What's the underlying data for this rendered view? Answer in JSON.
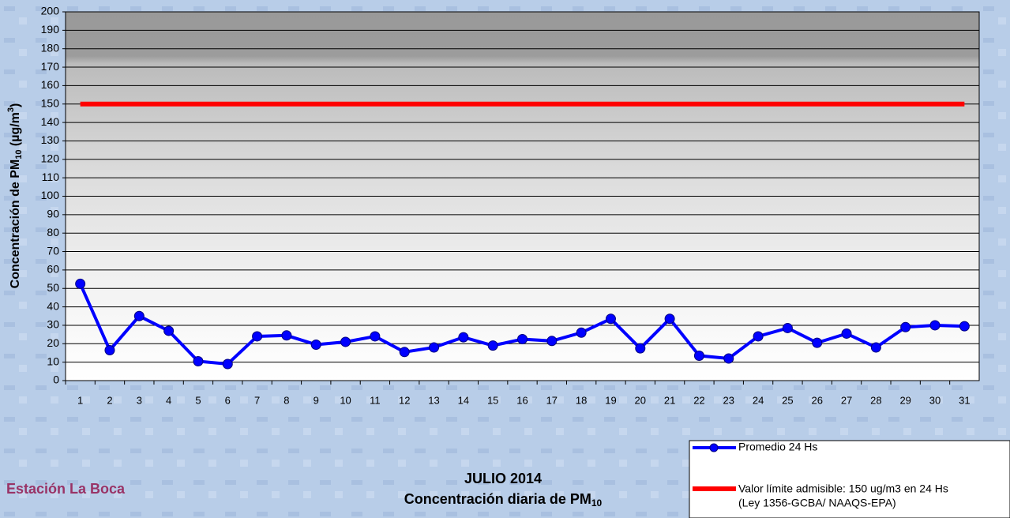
{
  "chart_data": {
    "type": "line",
    "title": [
      "JULIO 2014",
      "Concentración diaria de PM",
      "10"
    ],
    "station": "Estación La Boca",
    "y_label": [
      "Concentración de PM",
      "10",
      " (µg/m",
      "3",
      ")"
    ],
    "categories": [
      "1",
      "2",
      "3",
      "4",
      "5",
      "6",
      "7",
      "8",
      "9",
      "10",
      "11",
      "12",
      "13",
      "14",
      "15",
      "16",
      "17",
      "18",
      "19",
      "20",
      "21",
      "22",
      "23",
      "24",
      "25",
      "26",
      "27",
      "28",
      "29",
      "30",
      "31"
    ],
    "series": [
      {
        "name": "Promedio 24 Hs",
        "color": "#0000ff",
        "values": [
          52.5,
          16.5,
          35,
          27,
          10.5,
          9,
          24,
          24.5,
          19.5,
          21,
          24,
          15.5,
          18,
          23.5,
          19,
          22.5,
          21.5,
          26,
          33.5,
          17.5,
          33.5,
          13.5,
          12,
          24,
          28.5,
          20.5,
          25.5,
          18,
          29,
          30,
          29.5
        ]
      }
    ],
    "limit": {
      "name": "Valor límite admisible: 150 ug/m3 en 24 Hs",
      "note": "(Ley 1356-GCBA/ NAAQS-EPA)",
      "value": 150,
      "color": "#ff0000"
    },
    "ylim": [
      0,
      200
    ],
    "yticks": [
      0,
      10,
      20,
      30,
      40,
      50,
      60,
      70,
      80,
      90,
      100,
      110,
      120,
      130,
      140,
      150,
      160,
      170,
      180,
      190,
      200
    ],
    "grid": true
  }
}
